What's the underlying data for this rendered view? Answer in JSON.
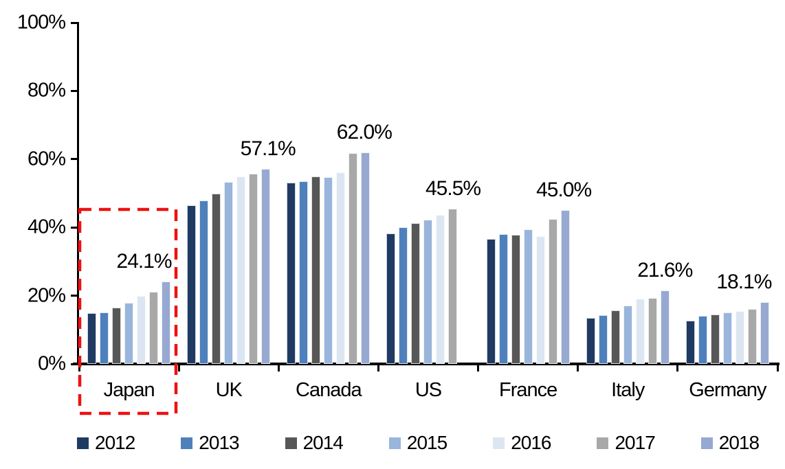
{
  "chart_data": {
    "type": "bar",
    "title": "",
    "xlabel": "",
    "ylabel": "",
    "ylim": [
      0,
      100
    ],
    "grid": false,
    "legend_position": "bottom",
    "y_ticks": [
      "0%",
      "20%",
      "40%",
      "60%",
      "80%",
      "100%"
    ],
    "categories": [
      "Japan",
      "UK",
      "Canada",
      "US",
      "France",
      "Italy",
      "Germany"
    ],
    "series": [
      {
        "name": "2012",
        "color": "#1F3A63",
        "values": [
          14.8,
          46.4,
          53.1,
          38.3,
          36.6,
          13.4,
          12.6
        ]
      },
      {
        "name": "2013",
        "color": "#4E80BC",
        "values": [
          15.0,
          47.9,
          53.5,
          40.1,
          38.0,
          14.3,
          14.0
        ]
      },
      {
        "name": "2014",
        "color": "#575757",
        "values": [
          16.6,
          50.0,
          54.9,
          41.3,
          37.8,
          15.6,
          14.5
        ]
      },
      {
        "name": "2015",
        "color": "#9AB5DB",
        "values": [
          18.0,
          53.3,
          54.7,
          42.3,
          39.5,
          17.2,
          15.0
        ]
      },
      {
        "name": "2016",
        "color": "#DCE6F2",
        "values": [
          20.0,
          54.9,
          56.2,
          43.7,
          37.4,
          19.2,
          15.5
        ]
      },
      {
        "name": "2017",
        "color": "#A8A8A8",
        "values": [
          21.2,
          55.8,
          61.7,
          45.5,
          42.5,
          19.3,
          16.0
        ]
      },
      {
        "name": "2018",
        "color": "#97A9D1",
        "values": [
          24.1,
          57.1,
          62.0,
          null,
          45.0,
          21.6,
          18.1
        ]
      }
    ],
    "data_labels": [
      "24.1%",
      "57.1%",
      "62.0%",
      "45.5%",
      "45.0%",
      "21.6%",
      "18.1%"
    ],
    "annotation": {
      "type": "dashed-box",
      "target_category": "Japan",
      "color": "#EE1111"
    }
  }
}
